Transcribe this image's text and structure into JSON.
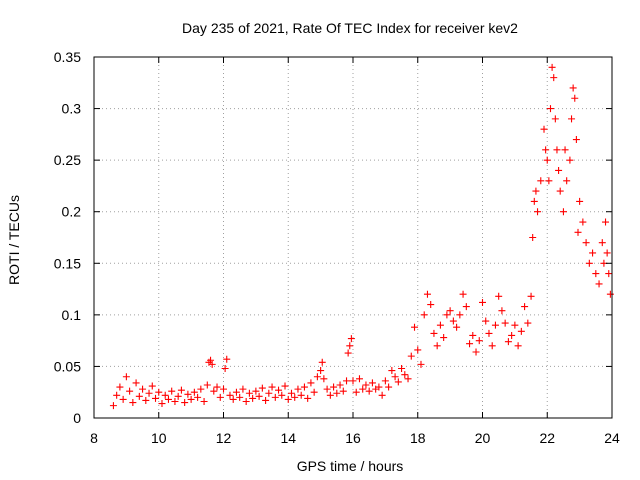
{
  "chart_data": {
    "type": "scatter",
    "title": "Day 235 of 2021, Rate Of TEC Index for receiver kev2",
    "xlabel": "GPS time / hours",
    "ylabel": "ROTI / TECUs",
    "xlim": [
      8,
      24
    ],
    "ylim": [
      0,
      0.35
    ],
    "xticks": [
      "8",
      "10",
      "12",
      "14",
      "16",
      "18",
      "20",
      "22",
      "24"
    ],
    "yticks": [
      "0",
      "0.05",
      "0.1",
      "0.15",
      "0.2",
      "0.25",
      "0.3",
      "0.35"
    ],
    "grid": true,
    "marker": "+",
    "color": "#ff0000",
    "series": [
      {
        "name": "",
        "points": [
          [
            8.6,
            0.012
          ],
          [
            8.7,
            0.022
          ],
          [
            8.8,
            0.03
          ],
          [
            8.9,
            0.018
          ],
          [
            9.0,
            0.04
          ],
          [
            9.1,
            0.026
          ],
          [
            9.2,
            0.015
          ],
          [
            9.3,
            0.034
          ],
          [
            9.4,
            0.021
          ],
          [
            9.5,
            0.028
          ],
          [
            9.6,
            0.017
          ],
          [
            9.7,
            0.024
          ],
          [
            9.8,
            0.031
          ],
          [
            9.9,
            0.019
          ],
          [
            10.0,
            0.025
          ],
          [
            10.1,
            0.014
          ],
          [
            10.2,
            0.022
          ],
          [
            10.3,
            0.018
          ],
          [
            10.4,
            0.026
          ],
          [
            10.5,
            0.016
          ],
          [
            10.6,
            0.021
          ],
          [
            10.7,
            0.027
          ],
          [
            10.8,
            0.015
          ],
          [
            10.9,
            0.023
          ],
          [
            11.0,
            0.018
          ],
          [
            11.1,
            0.025
          ],
          [
            11.2,
            0.02
          ],
          [
            11.3,
            0.028
          ],
          [
            11.4,
            0.016
          ],
          [
            11.5,
            0.032
          ],
          [
            11.55,
            0.054
          ],
          [
            11.6,
            0.056
          ],
          [
            11.65,
            0.052
          ],
          [
            11.7,
            0.026
          ],
          [
            11.8,
            0.03
          ],
          [
            11.9,
            0.02
          ],
          [
            12.0,
            0.028
          ],
          [
            12.05,
            0.048
          ],
          [
            12.1,
            0.057
          ],
          [
            12.2,
            0.022
          ],
          [
            12.3,
            0.018
          ],
          [
            12.4,
            0.025
          ],
          [
            12.5,
            0.02
          ],
          [
            12.6,
            0.028
          ],
          [
            12.7,
            0.016
          ],
          [
            12.8,
            0.024
          ],
          [
            12.9,
            0.019
          ],
          [
            13.0,
            0.026
          ],
          [
            13.1,
            0.021
          ],
          [
            13.2,
            0.029
          ],
          [
            13.3,
            0.017
          ],
          [
            13.4,
            0.024
          ],
          [
            13.5,
            0.03
          ],
          [
            13.6,
            0.02
          ],
          [
            13.7,
            0.027
          ],
          [
            13.8,
            0.022
          ],
          [
            13.9,
            0.031
          ],
          [
            14.0,
            0.018
          ],
          [
            14.1,
            0.024
          ],
          [
            14.2,
            0.02
          ],
          [
            14.3,
            0.028
          ],
          [
            14.4,
            0.022
          ],
          [
            14.5,
            0.03
          ],
          [
            14.6,
            0.019
          ],
          [
            14.7,
            0.034
          ],
          [
            14.8,
            0.025
          ],
          [
            14.9,
            0.04
          ],
          [
            15.0,
            0.046
          ],
          [
            15.05,
            0.054
          ],
          [
            15.1,
            0.038
          ],
          [
            15.2,
            0.028
          ],
          [
            15.3,
            0.022
          ],
          [
            15.4,
            0.03
          ],
          [
            15.5,
            0.024
          ],
          [
            15.6,
            0.032
          ],
          [
            15.7,
            0.026
          ],
          [
            15.8,
            0.036
          ],
          [
            15.85,
            0.063
          ],
          [
            15.9,
            0.07
          ],
          [
            15.95,
            0.077
          ],
          [
            16.0,
            0.036
          ],
          [
            16.1,
            0.025
          ],
          [
            16.2,
            0.038
          ],
          [
            16.3,
            0.028
          ],
          [
            16.4,
            0.032
          ],
          [
            16.5,
            0.026
          ],
          [
            16.6,
            0.034
          ],
          [
            16.7,
            0.028
          ],
          [
            16.8,
            0.03
          ],
          [
            16.9,
            0.022
          ],
          [
            17.0,
            0.036
          ],
          [
            17.1,
            0.03
          ],
          [
            17.2,
            0.046
          ],
          [
            17.3,
            0.04
          ],
          [
            17.4,
            0.035
          ],
          [
            17.5,
            0.048
          ],
          [
            17.6,
            0.042
          ],
          [
            17.7,
            0.038
          ],
          [
            17.8,
            0.06
          ],
          [
            17.9,
            0.088
          ],
          [
            18.0,
            0.066
          ],
          [
            18.1,
            0.052
          ],
          [
            18.2,
            0.1
          ],
          [
            18.3,
            0.12
          ],
          [
            18.4,
            0.11
          ],
          [
            18.5,
            0.082
          ],
          [
            18.6,
            0.07
          ],
          [
            18.7,
            0.09
          ],
          [
            18.8,
            0.078
          ],
          [
            18.9,
            0.1
          ],
          [
            19.0,
            0.104
          ],
          [
            19.1,
            0.094
          ],
          [
            19.2,
            0.088
          ],
          [
            19.3,
            0.1
          ],
          [
            19.4,
            0.12
          ],
          [
            19.5,
            0.108
          ],
          [
            19.6,
            0.072
          ],
          [
            19.7,
            0.08
          ],
          [
            19.8,
            0.064
          ],
          [
            19.9,
            0.075
          ],
          [
            20.0,
            0.112
          ],
          [
            20.1,
            0.094
          ],
          [
            20.2,
            0.082
          ],
          [
            20.3,
            0.07
          ],
          [
            20.4,
            0.09
          ],
          [
            20.5,
            0.118
          ],
          [
            20.6,
            0.104
          ],
          [
            20.7,
            0.092
          ],
          [
            20.8,
            0.074
          ],
          [
            20.9,
            0.08
          ],
          [
            21.0,
            0.09
          ],
          [
            21.1,
            0.07
          ],
          [
            21.2,
            0.084
          ],
          [
            21.3,
            0.108
          ],
          [
            21.4,
            0.092
          ],
          [
            21.5,
            0.118
          ],
          [
            21.55,
            0.175
          ],
          [
            21.6,
            0.21
          ],
          [
            21.65,
            0.22
          ],
          [
            21.7,
            0.2
          ],
          [
            21.8,
            0.23
          ],
          [
            21.9,
            0.28
          ],
          [
            21.95,
            0.26
          ],
          [
            22.0,
            0.25
          ],
          [
            22.05,
            0.23
          ],
          [
            22.1,
            0.3
          ],
          [
            22.15,
            0.34
          ],
          [
            22.2,
            0.33
          ],
          [
            22.25,
            0.29
          ],
          [
            22.3,
            0.26
          ],
          [
            22.35,
            0.24
          ],
          [
            22.4,
            0.22
          ],
          [
            22.5,
            0.2
          ],
          [
            22.55,
            0.26
          ],
          [
            22.6,
            0.23
          ],
          [
            22.7,
            0.25
          ],
          [
            22.75,
            0.29
          ],
          [
            22.8,
            0.32
          ],
          [
            22.85,
            0.31
          ],
          [
            22.9,
            0.27
          ],
          [
            22.95,
            0.18
          ],
          [
            23.0,
            0.21
          ],
          [
            23.1,
            0.19
          ],
          [
            23.2,
            0.17
          ],
          [
            23.3,
            0.15
          ],
          [
            23.4,
            0.16
          ],
          [
            23.5,
            0.14
          ],
          [
            23.6,
            0.13
          ],
          [
            23.7,
            0.17
          ],
          [
            23.75,
            0.15
          ],
          [
            23.8,
            0.19
          ],
          [
            23.85,
            0.16
          ],
          [
            23.9,
            0.14
          ],
          [
            23.95,
            0.12
          ]
        ]
      }
    ]
  }
}
